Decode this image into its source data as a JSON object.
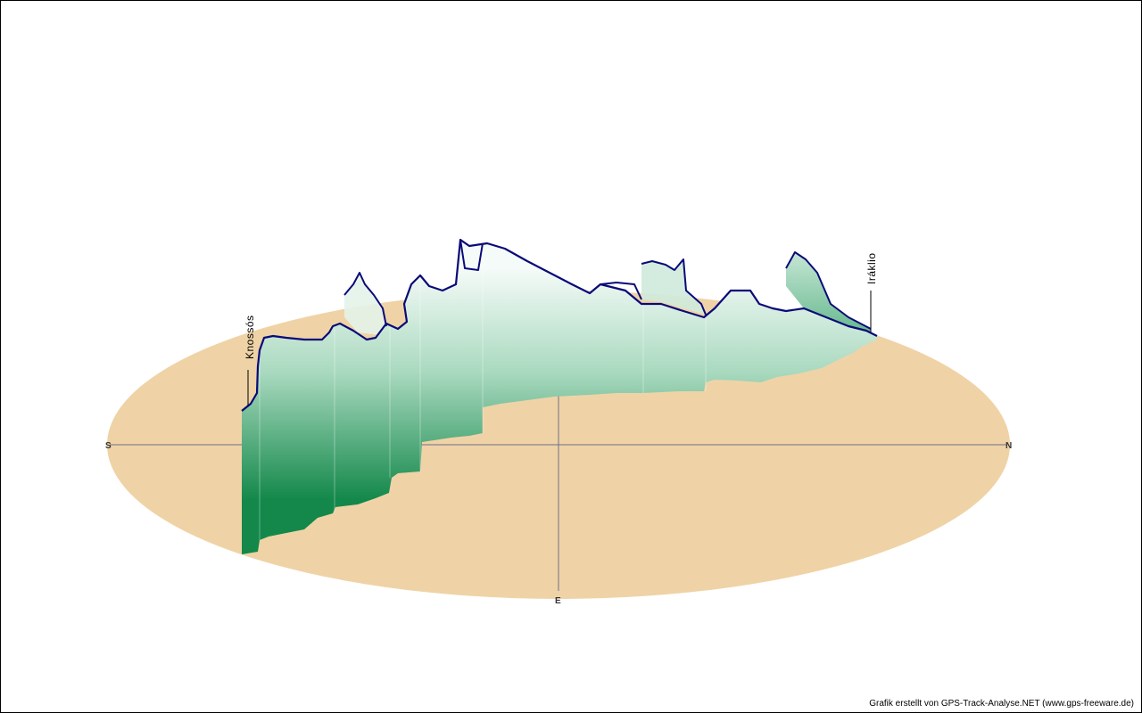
{
  "compass": {
    "south": "S",
    "north": "N",
    "east": "E"
  },
  "places": {
    "start": "Knossós",
    "end": "Iráklio"
  },
  "credit": "Grafik erstellt von GPS-Track-Analyse.NET (www.gps-freeware.de)",
  "colors": {
    "ground": "#efd3a6",
    "wall_light": "#f5fbf8",
    "wall_dark": "#13884a",
    "track_line": "#0a0a78",
    "axis": "#6f6f8a"
  }
}
